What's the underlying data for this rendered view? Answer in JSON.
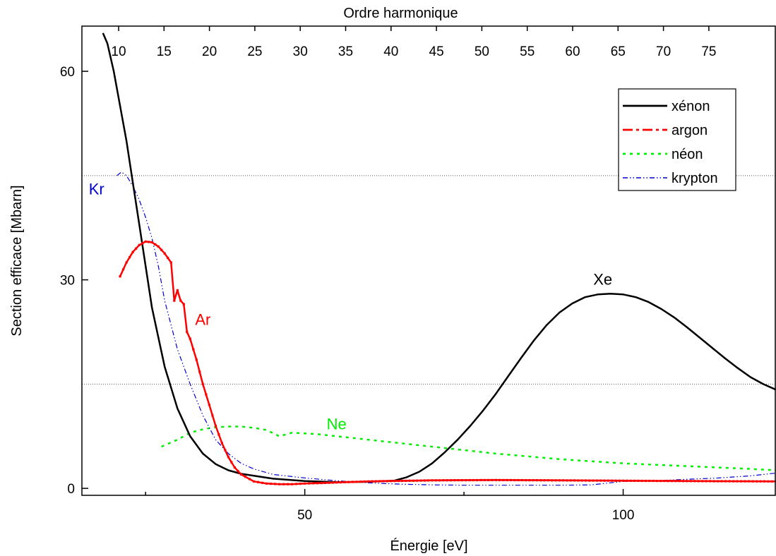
{
  "chart_data": {
    "type": "line",
    "xlabel": "Énergie [eV]",
    "ylabel": "Section efficace [Mbarn]",
    "top_xlabel": "Ordre harmonique",
    "xlim": [
      15,
      124
    ],
    "ylim": [
      -1,
      66.5
    ],
    "x_ticks": [
      50,
      100
    ],
    "x_minor_ticks": [
      25,
      75
    ],
    "y_ticks": [
      0,
      30,
      60
    ],
    "top_ticks": [
      "10",
      "15",
      "20",
      "25",
      "30",
      "35",
      "40",
      "45",
      "50",
      "55",
      "60",
      "65",
      "70",
      "75"
    ],
    "hlines": [
      45,
      15
    ],
    "legend_position": "top-right",
    "colors": {
      "xenon": "#000000",
      "argon": "#ff0000",
      "neon": "#00ee00",
      "krypton": "#0000cc"
    },
    "series": [
      {
        "name": "xénon",
        "label": "Xe",
        "x": [
          18.3,
          19,
          20,
          21,
          22,
          23,
          24,
          25,
          26,
          28,
          30,
          32,
          34,
          36,
          38,
          40,
          45,
          50,
          55,
          60,
          64,
          66,
          68,
          70,
          72,
          74,
          76,
          78,
          80,
          82,
          84,
          86,
          88,
          90,
          92,
          94,
          96,
          98,
          100,
          102,
          104,
          106,
          108,
          110,
          112,
          114,
          116,
          118,
          120,
          122,
          124
        ],
        "values": [
          65.5,
          64,
          60,
          55,
          50,
          44,
          38,
          32,
          26,
          17.5,
          11.5,
          7.5,
          5,
          3.5,
          2.6,
          2.1,
          1.4,
          1.05,
          0.9,
          0.95,
          1.1,
          1.6,
          2.4,
          3.6,
          5.2,
          7,
          9,
          11.2,
          13.6,
          16.2,
          18.8,
          21.3,
          23.5,
          25.3,
          26.6,
          27.5,
          27.9,
          28,
          27.9,
          27.5,
          26.8,
          25.8,
          24.6,
          23.2,
          21.7,
          20.2,
          18.7,
          17.3,
          16,
          15,
          14.2
        ]
      },
      {
        "name": "argon",
        "label": "Ar",
        "x": [
          21,
          22,
          23,
          24,
          25,
          26,
          27,
          28,
          29,
          29.5,
          30,
          30.5,
          31,
          31.5,
          32,
          33,
          34,
          35,
          36,
          37,
          38,
          39,
          40,
          42,
          44,
          46,
          48,
          50,
          52,
          55,
          60,
          70,
          80,
          90,
          100,
          110,
          124
        ],
        "values": [
          30.5,
          32.5,
          34,
          35,
          35.5,
          35.4,
          34.8,
          33.8,
          32.5,
          27,
          28.5,
          27,
          26.5,
          22.5,
          21.5,
          18.5,
          15,
          12,
          9,
          6.5,
          4.5,
          3,
          2,
          1,
          0.7,
          0.6,
          0.6,
          0.7,
          0.75,
          0.85,
          1.0,
          1.15,
          1.2,
          1.15,
          1.1,
          1.05,
          1.0
        ]
      },
      {
        "name": "néon",
        "label": "Ne",
        "x": [
          27.5,
          30,
          32,
          34,
          36,
          38,
          40,
          42,
          44,
          46,
          48,
          50,
          52,
          54,
          56,
          58,
          60,
          62,
          64,
          66,
          68,
          70,
          72,
          74,
          76,
          78,
          80,
          85,
          90,
          95,
          100,
          105,
          110,
          115,
          120,
          124
        ],
        "values": [
          6,
          7,
          8,
          8.5,
          8.8,
          8.9,
          8.9,
          8.7,
          8.4,
          7.5,
          8,
          7.9,
          7.8,
          7.6,
          7.4,
          7.2,
          7,
          6.8,
          6.6,
          6.4,
          6.2,
          6,
          5.8,
          5.6,
          5.4,
          5.2,
          5,
          4.6,
          4.2,
          3.9,
          3.6,
          3.4,
          3.2,
          3.0,
          2.8,
          2.6
        ]
      },
      {
        "name": "krypton",
        "label": "Kr",
        "x": [
          20.5,
          21.2,
          22,
          23,
          24,
          25,
          26,
          27,
          28,
          30,
          32,
          34,
          36,
          38,
          40,
          42,
          45,
          50,
          55,
          60,
          65,
          70,
          75,
          80,
          85,
          90,
          95,
          100,
          105,
          110,
          115,
          120,
          124
        ],
        "values": [
          45,
          45.5,
          45,
          43.5,
          41.5,
          39,
          36,
          32,
          27,
          20,
          15,
          10.5,
          7,
          5,
          3.6,
          2.8,
          2,
          1.5,
          1.1,
          0.8,
          0.6,
          0.5,
          0.45,
          0.45,
          0.45,
          0.45,
          0.5,
          1.0,
          1.1,
          1.3,
          1.5,
          1.8,
          2.2
        ]
      }
    ],
    "annotations": [
      {
        "text": "Kr",
        "x": 17.3,
        "y": 42.3,
        "color": "#0000cc"
      },
      {
        "text": "Ar",
        "x": 34,
        "y": 23.5,
        "color": "#ff0000"
      },
      {
        "text": "Ne",
        "x": 55,
        "y": 8.5,
        "color": "#00ee00"
      },
      {
        "text": "Xe",
        "x": 96.8,
        "y": 29.3,
        "color": "#000000"
      }
    ]
  }
}
